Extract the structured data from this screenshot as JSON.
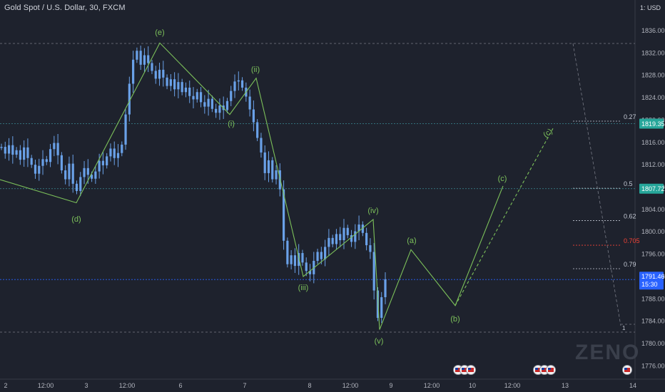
{
  "header": {
    "symbol_title": "Gold Spot / U.S. Dollar, 30, FXCM",
    "unit": "1: USD"
  },
  "watermark": "ZENO",
  "colors": {
    "background": "#1e222d",
    "candle": "#6aa1e8",
    "wave": "#7cc05a",
    "fib": "#c4c9d4",
    "fib_highlight": "#f44336",
    "price_badge": "#2962ff",
    "level_badge": "#26a69a",
    "level_line": "#3b8b94",
    "grid_dash": "#787b86",
    "axis_text": "#b2b5be"
  },
  "chart_data": {
    "type": "line",
    "title": "Gold Spot / U.S. Dollar, 30, FXCM",
    "xlabel": "",
    "ylabel": "USD",
    "ylim": [
      1774,
      1841
    ],
    "y_ticks": [
      "1776.00",
      "1780.00",
      "1784.00",
      "1788.00",
      "1792.00",
      "1796.00",
      "1800.00",
      "1804.00",
      "1808.00",
      "1812.00",
      "1816.00",
      "1820.00",
      "1824.00",
      "1828.00",
      "1832.00",
      "1836.00"
    ],
    "x_ticks": [
      "2",
      "12:00",
      "3",
      "12:00",
      "6",
      "7",
      "8",
      "12:00",
      "9",
      "12:00",
      "10",
      "12:00",
      "13",
      "14"
    ],
    "current_price": {
      "value": "1791.46",
      "countdown": "15:30"
    },
    "levels": [
      {
        "label": "1819.35",
        "value": 1819.35
      },
      {
        "label": "1807.72",
        "value": 1807.72
      }
    ],
    "wave_points": [
      {
        "label": "(d)",
        "price": 1805.2
      },
      {
        "label": "(e)",
        "price": 1833.8
      },
      {
        "label": "(i)",
        "price": 1821.0
      },
      {
        "label": "(ii)",
        "price": 1827.5
      },
      {
        "label": "(iii)",
        "price": 1792.0
      },
      {
        "label": "(iv)",
        "price": 1802.2
      },
      {
        "label": "(v)",
        "price": 1782.5
      },
      {
        "label": "(a)",
        "price": 1796.8
      },
      {
        "label": "(b)",
        "price": 1786.8
      },
      {
        "label": "(c)",
        "price": 1808.2
      }
    ],
    "projected_c": {
      "label": "(c)",
      "price": 1818.5
    },
    "fib_levels": [
      {
        "label": "0.27",
        "value": 1819.8
      },
      {
        "label": "0.5",
        "value": 1807.8
      },
      {
        "label": "0.62",
        "value": 1802.0
      },
      {
        "label": "0.705",
        "value": 1797.6
      },
      {
        "label": "0.79",
        "value": 1793.4
      }
    ],
    "prices": [
      1815.2,
      1814.0,
      1815.5,
      1813.8,
      1814.6,
      1812.9,
      1815.1,
      1813.2,
      1812.0,
      1810.4,
      1811.8,
      1813.0,
      1812.5,
      1814.8,
      1815.9,
      1813.7,
      1811.0,
      1809.4,
      1812.2,
      1808.6,
      1807.3,
      1809.8,
      1811.4,
      1810.2,
      1809.5,
      1810.8,
      1812.7,
      1811.9,
      1813.5,
      1814.9,
      1813.2,
      1814.1,
      1815.6,
      1821.0,
      1826.5,
      1830.8,
      1832.4,
      1829.9,
      1831.6,
      1830.2,
      1828.8,
      1827.4,
      1829.0,
      1827.6,
      1826.1,
      1827.3,
      1825.5,
      1826.8,
      1825.0,
      1825.8,
      1824.3,
      1823.7,
      1825.0,
      1823.2,
      1822.4,
      1823.8,
      1822.0,
      1821.3,
      1822.6,
      1821.8,
      1823.4,
      1825.2,
      1826.9,
      1827.1,
      1825.8,
      1824.2,
      1821.9,
      1819.6,
      1816.8,
      1814.2,
      1810.5,
      1812.8,
      1809.4,
      1811.0,
      1807.6,
      1798.4,
      1794.2,
      1795.8,
      1793.9,
      1796.2,
      1794.5,
      1793.0,
      1792.4,
      1794.8,
      1796.4,
      1795.1,
      1797.3,
      1798.9,
      1797.8,
      1799.6,
      1798.5,
      1800.7,
      1799.4,
      1798.2,
      1800.1,
      1801.3,
      1799.8,
      1797.6,
      1796.4,
      1789.5,
      1784.6,
      1788.3,
      1791.5
    ],
    "events_markers": [
      "us-flag-icon",
      "eu-flag-icon",
      "us-flag-icon"
    ]
  }
}
